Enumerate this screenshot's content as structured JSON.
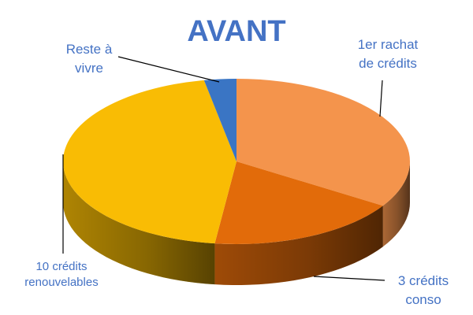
{
  "chart_data": {
    "type": "pie",
    "title": "AVANT",
    "three_d": true,
    "categories": [
      "1er rachat de crédits",
      "3 crédits conso",
      "10 crédits renouvelables",
      "Reste à vivre"
    ],
    "label_lines": [
      [
        "1er rachat",
        "de crédits"
      ],
      [
        "3 crédits",
        "conso"
      ],
      [
        "10 crédits",
        "renouvelables"
      ],
      [
        "Reste à",
        "vivre"
      ]
    ],
    "values": [
      34,
      18,
      45,
      3
    ],
    "colors": [
      "#f4944c",
      "#e26b0a",
      "#f9bc04",
      "#3a75c4"
    ],
    "label_color": "#4472c4",
    "legend": "none"
  }
}
